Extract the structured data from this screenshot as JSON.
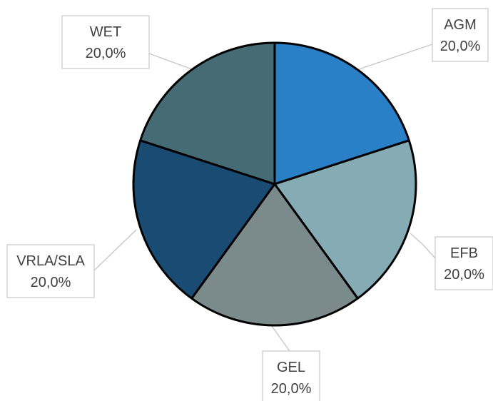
{
  "chart_data": {
    "type": "pie",
    "title": "",
    "categories": [
      "AGM",
      "EFB",
      "GEL",
      "VRLA/SLA",
      "WET"
    ],
    "values": [
      20.0,
      20.0,
      20.0,
      20.0,
      20.0
    ],
    "value_labels": [
      "20,0%",
      "20,0%",
      "20,0%",
      "20,0%",
      "20,0%"
    ],
    "colors": [
      "#2a80c6",
      "#85abb5",
      "#7b8b8c",
      "#1a4b73",
      "#456c74"
    ],
    "start": "12 o'clock",
    "direction": "clockwise",
    "legend": "none",
    "data_labels": "outside with leader lines"
  }
}
